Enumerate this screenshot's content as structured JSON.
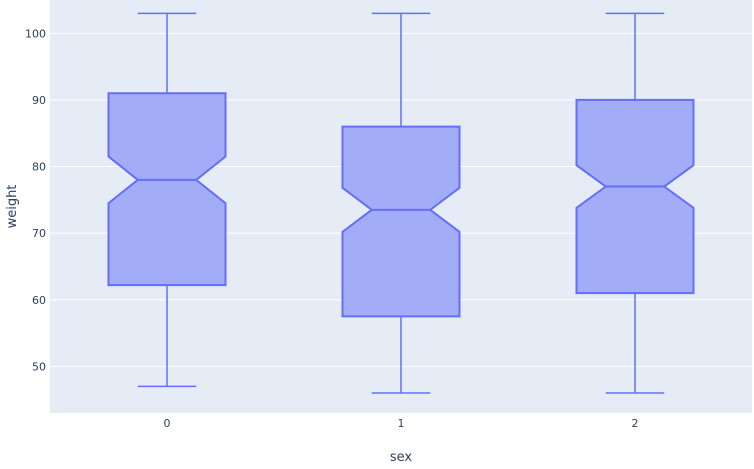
{
  "chart_data": {
    "type": "box",
    "notched": true,
    "xlabel": "sex",
    "ylabel": "weight",
    "categories": [
      "0",
      "1",
      "2"
    ],
    "ylim": [
      43,
      105
    ],
    "yticks": [
      50,
      60,
      70,
      80,
      90,
      100
    ],
    "boxes": [
      {
        "category": "0",
        "min": 47,
        "q1": 62.2,
        "median": 78,
        "q3": 91,
        "max": 103,
        "notch_low": 74.5,
        "notch_high": 81.5
      },
      {
        "category": "1",
        "min": 46,
        "q1": 57.5,
        "median": 73.5,
        "q3": 86,
        "max": 103,
        "notch_low": 70.2,
        "notch_high": 76.8
      },
      {
        "category": "2",
        "min": 46,
        "q1": 61,
        "median": 77,
        "q3": 90,
        "max": 103,
        "notch_low": 73.8,
        "notch_high": 80.2
      }
    ],
    "grid": true,
    "colors": {
      "fill": "#a3acf7",
      "line": "#636efa",
      "plot_bg": "#e5ecf6",
      "grid": "#ffffff",
      "text": "#2a3f5f"
    }
  }
}
